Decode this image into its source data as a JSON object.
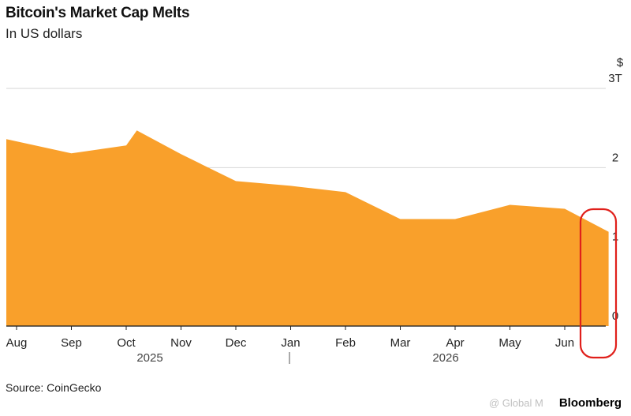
{
  "header": {
    "title": "Bitcoin's Market Cap Melts",
    "subtitle": "In US dollars"
  },
  "footer": {
    "source": "Source: CoinGecko",
    "brand": "Bloomberg",
    "watermark": "@ Global M"
  },
  "chart_data": {
    "type": "area",
    "unit_label": "$",
    "y_ticks": [
      {
        "value": 0,
        "label": "0"
      },
      {
        "value": 1,
        "label": "1"
      },
      {
        "value": 2,
        "label": "2"
      },
      {
        "value": 3,
        "label": "3T"
      }
    ],
    "ylim": [
      0,
      3
    ],
    "x_ticks": [
      "Aug",
      "Sep",
      "Oct",
      "Nov",
      "Dec",
      "Jan",
      "Feb",
      "Mar",
      "Apr",
      "May",
      "Jun"
    ],
    "years": [
      "2025",
      "2026"
    ],
    "points": [
      {
        "x": "2025-08-01",
        "y": 2.36
      },
      {
        "x": "2025-09-01",
        "y": 2.18
      },
      {
        "x": "2025-10-01",
        "y": 2.28
      },
      {
        "x": "2025-10-07",
        "y": 2.47
      },
      {
        "x": "2025-11-01",
        "y": 2.17
      },
      {
        "x": "2025-12-01",
        "y": 1.83
      },
      {
        "x": "2026-01-01",
        "y": 1.77
      },
      {
        "x": "2026-02-01",
        "y": 1.69
      },
      {
        "x": "2026-03-01",
        "y": 1.35
      },
      {
        "x": "2026-04-01",
        "y": 1.35
      },
      {
        "x": "2026-05-01",
        "y": 1.53
      },
      {
        "x": "2026-06-01",
        "y": 1.48
      },
      {
        "x": "2026-06-25",
        "y": 1.19
      }
    ],
    "fill_color": "#F9A02B",
    "highlight_color": "#E0201B"
  }
}
